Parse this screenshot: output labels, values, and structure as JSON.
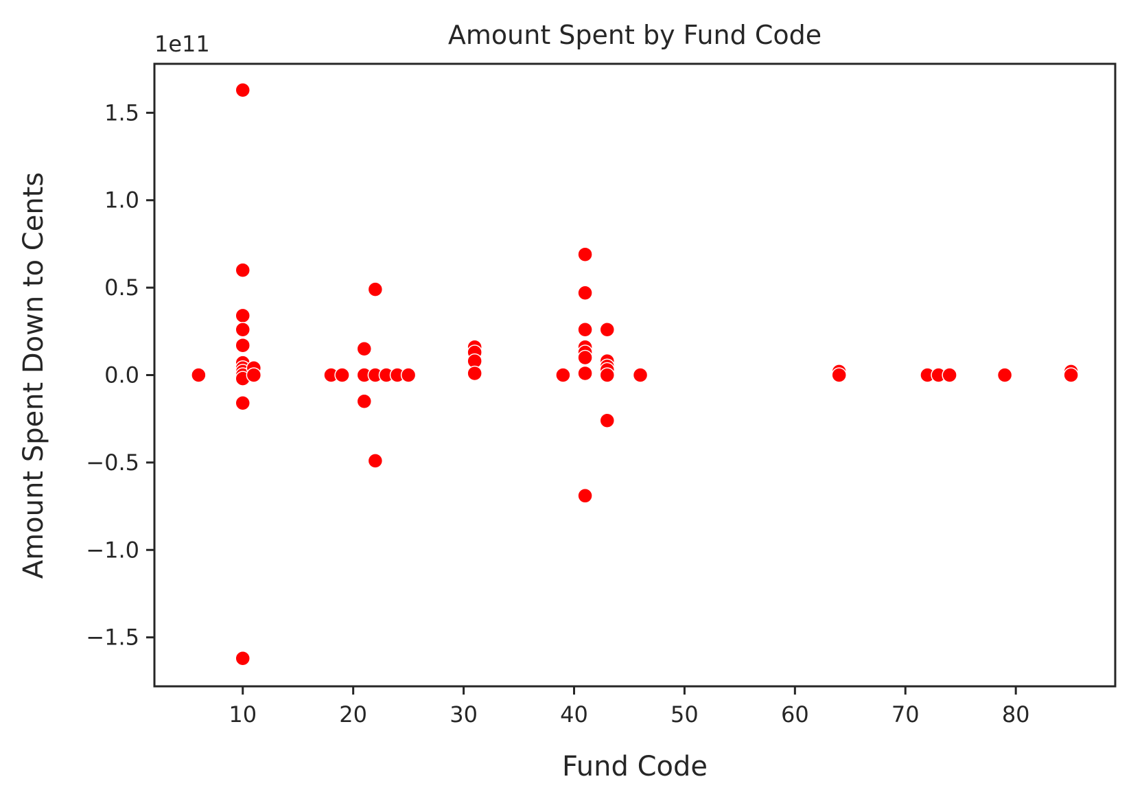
{
  "chart_data": {
    "type": "scatter",
    "title": "Amount Spent by Fund Code",
    "xlabel": "Fund Code",
    "ylabel": "Amount Spent Down to Cents",
    "y_offset_label": "1e11",
    "xlim": [
      2,
      89
    ],
    "ylim": [
      -1.78,
      1.78
    ],
    "y_scale_note": "values in units of 1e11",
    "x_ticks": [
      10,
      20,
      30,
      40,
      50,
      60,
      70,
      80
    ],
    "x_tick_labels": [
      "10",
      "20",
      "30",
      "40",
      "50",
      "60",
      "70",
      "80"
    ],
    "y_ticks": [
      -1.5,
      -1.0,
      -0.5,
      0.0,
      0.5,
      1.0,
      1.5
    ],
    "y_tick_labels": [
      "−1.5",
      "−1.0",
      "−0.5",
      "0.0",
      "0.5",
      "1.0",
      "1.5"
    ],
    "grid": false,
    "marker_color": "#ff0000",
    "marker_edge_color": "#ffffff",
    "series": [
      {
        "points": [
          [
            6,
            0.0
          ],
          [
            10,
            1.63
          ],
          [
            10,
            0.6
          ],
          [
            10,
            0.34
          ],
          [
            10,
            0.26
          ],
          [
            10,
            0.17
          ],
          [
            10,
            0.07
          ],
          [
            10,
            0.04
          ],
          [
            10,
            0.02
          ],
          [
            10,
            0.0
          ],
          [
            10,
            -0.02
          ],
          [
            10,
            -0.16
          ],
          [
            10,
            -1.62
          ],
          [
            11,
            0.04
          ],
          [
            11,
            0.0
          ],
          [
            18,
            0.0
          ],
          [
            19,
            0.0
          ],
          [
            21,
            0.15
          ],
          [
            21,
            0.0
          ],
          [
            21,
            -0.15
          ],
          [
            22,
            0.49
          ],
          [
            22,
            0.0
          ],
          [
            22,
            -0.49
          ],
          [
            23,
            0.0
          ],
          [
            24,
            0.0
          ],
          [
            25,
            0.0
          ],
          [
            31,
            0.16
          ],
          [
            31,
            0.13
          ],
          [
            31,
            0.08
          ],
          [
            31,
            0.01
          ],
          [
            39,
            0.0
          ],
          [
            41,
            0.69
          ],
          [
            41,
            0.47
          ],
          [
            41,
            0.26
          ],
          [
            41,
            0.16
          ],
          [
            41,
            0.13
          ],
          [
            41,
            0.1
          ],
          [
            41,
            0.01
          ],
          [
            41,
            -0.69
          ],
          [
            43,
            0.26
          ],
          [
            43,
            0.08
          ],
          [
            43,
            0.05
          ],
          [
            43,
            0.03
          ],
          [
            43,
            0.0
          ],
          [
            43,
            -0.26
          ],
          [
            46,
            0.0
          ],
          [
            64,
            0.02
          ],
          [
            64,
            0.0
          ],
          [
            72,
            0.0
          ],
          [
            73,
            0.0
          ],
          [
            74,
            0.0
          ],
          [
            79,
            0.0
          ],
          [
            85,
            0.02
          ],
          [
            85,
            0.0
          ]
        ]
      }
    ]
  }
}
